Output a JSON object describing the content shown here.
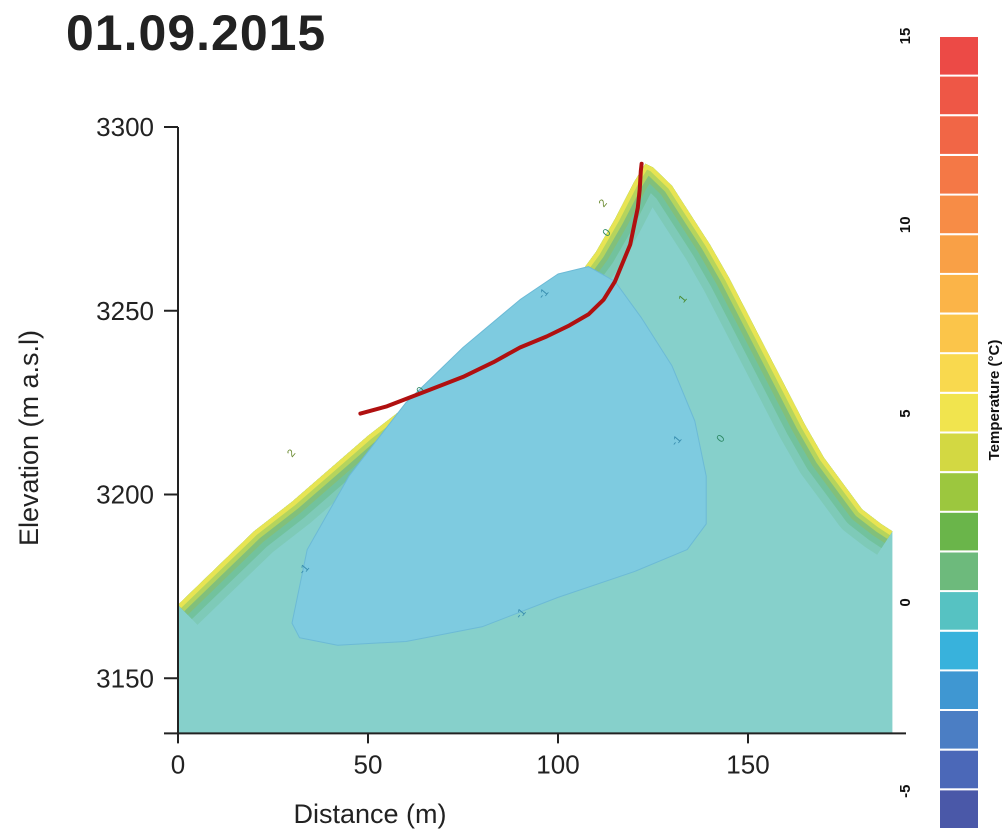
{
  "chart_data": {
    "type": "heatmap",
    "title": "01.09.2015",
    "xlabel": "Distance (m)",
    "ylabel": "Elevation (m a.s.l)",
    "xlim": [
      0,
      190
    ],
    "ylim": [
      3135,
      3300
    ],
    "xticks": [
      "0",
      "50",
      "100",
      "150"
    ],
    "yticks": [
      "3300",
      "3250",
      "3200",
      "3150"
    ],
    "grid": false,
    "colorbar": {
      "label": "Temperature (°C)",
      "range": [
        -6,
        15
      ],
      "tick_labels": [
        "15",
        "10",
        "5",
        "0",
        "-5"
      ],
      "colors": [
        "#4a58a8",
        "#4b68b8",
        "#4b7ec4",
        "#3f97d2",
        "#38b2dc",
        "#56c2c2",
        "#6dba7c",
        "#6ab54a",
        "#9cc73e",
        "#d3d842",
        "#f1e44e",
        "#f9d94e",
        "#fbc54a",
        "#fbb448",
        "#f9a046",
        "#f78c46",
        "#f47846",
        "#f16646",
        "#ee5746",
        "#ec4a46"
      ]
    },
    "contour_levels": [
      -1,
      0,
      1,
      2
    ],
    "contour_labels": [
      "-1",
      "-1",
      "-1",
      "-1",
      "0",
      "0",
      "0",
      "1",
      "2",
      "2"
    ],
    "surface_profile": {
      "x": [
        0,
        10,
        20,
        30,
        40,
        50,
        60,
        70,
        80,
        90,
        100,
        105,
        110,
        115,
        120,
        123,
        125,
        130,
        135,
        140,
        145,
        150,
        155,
        160,
        165,
        170,
        175,
        180,
        185,
        188
      ],
      "y": [
        3170,
        3180,
        3190,
        3198,
        3207,
        3216,
        3224,
        3231,
        3238,
        3245,
        3254,
        3259,
        3266,
        3275,
        3285,
        3290,
        3289,
        3284,
        3276,
        3268,
        3259,
        3249,
        3239,
        3229,
        3219,
        3210,
        3203,
        3196,
        3192,
        3190
      ]
    },
    "red_line": {
      "x": [
        48,
        55,
        65,
        75,
        83,
        90,
        97,
        103,
        108,
        112,
        115,
        117,
        119,
        120,
        121,
        121.5,
        121.8,
        122
      ],
      "y": [
        3222,
        3224,
        3228,
        3232,
        3236,
        3240,
        3243,
        3246,
        3249,
        3253,
        3258,
        3263,
        3268,
        3273,
        3278,
        3283,
        3288,
        3290
      ]
    }
  }
}
